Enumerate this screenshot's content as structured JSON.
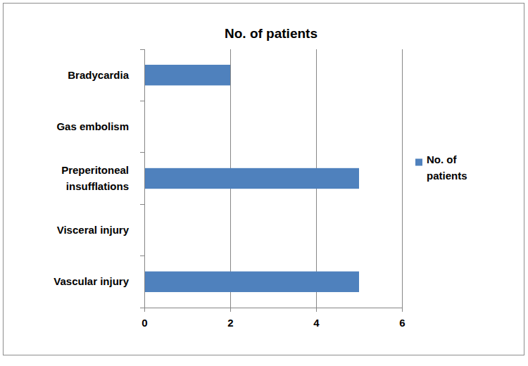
{
  "chart_data": {
    "type": "bar",
    "orientation": "horizontal",
    "title": "No. of patients",
    "categories": [
      "Bradycardia",
      "Gas embolism",
      "Preperitoneal insufflations",
      "Visceral injury",
      "Vascular injury"
    ],
    "series": [
      {
        "name": "No. of patients",
        "color": "#4f81bd",
        "values": [
          2,
          0,
          5,
          0,
          5
        ]
      }
    ],
    "xlim": [
      0,
      6
    ],
    "xticks": [
      0,
      2,
      4,
      6
    ],
    "grid": true,
    "legend": "right"
  }
}
